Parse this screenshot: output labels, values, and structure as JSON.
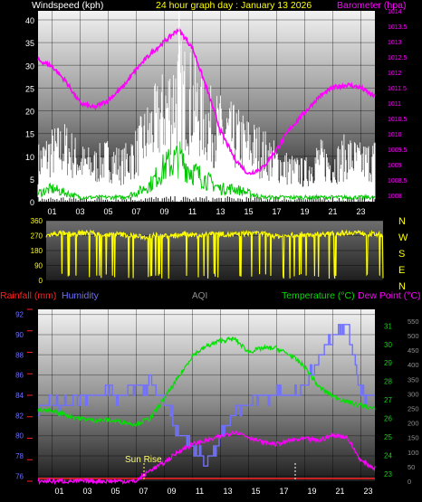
{
  "colors": {
    "background": "#000000",
    "wind_gust": "#ffffff",
    "wind_avg": "#00c800",
    "barometer": "#ff00ff",
    "direction": "#ffff00",
    "rainfall": "#ff2020",
    "humidity": "#7070ff",
    "temperature": "#00e000",
    "dewpoint": "#ff00ff",
    "aqi": "#909090",
    "sunrise": "#ffff66",
    "label_yellow": "#ffff00"
  },
  "top_panel": {
    "left_title": "Windspeed (kph)",
    "center_title": "24 hour graph day : January 13 2026",
    "right_title": "Barometer (hpa)"
  },
  "dir_panel": {
    "compass": [
      "N",
      "W",
      "S",
      "E",
      "N"
    ]
  },
  "bottom_panel": {
    "rain_label": "Rainfall (mm)",
    "humidity_label": "Humidity",
    "aqi_label": "AQI",
    "temp_label": "Temperature (°C)",
    "dew_label": "Dew Point (°C)",
    "sunrise_label": "Sun Rise"
  },
  "chart_data": [
    {
      "type": "line",
      "title": "24 hour graph day : January 13 2026",
      "x_ticks": [
        "01",
        "03",
        "05",
        "07",
        "09",
        "11",
        "13",
        "15",
        "17",
        "19",
        "21",
        "23"
      ],
      "y_left": {
        "label": "Windspeed (kph)",
        "ticks": [
          0,
          5,
          10,
          15,
          20,
          25,
          30,
          35,
          40
        ],
        "range": [
          0,
          42
        ]
      },
      "y_right": {
        "label": "Barometer (hpa)",
        "ticks": [
          1008,
          1008.5,
          1009,
          1009.5,
          1010,
          1010.5,
          1011,
          1011.5,
          1012,
          1012.5,
          1013,
          1013.5,
          1014
        ],
        "range": [
          1007.8,
          1014
        ]
      },
      "series": [
        {
          "name": "Barometer (hpa)",
          "x": [
            0,
            1,
            2,
            3,
            4,
            5,
            6,
            7,
            8,
            9,
            10,
            11,
            12,
            13,
            14,
            15,
            16,
            17,
            18,
            19,
            20,
            21,
            22,
            23,
            24
          ],
          "values": [
            1012.4,
            1012.2,
            1011.7,
            1011.0,
            1010.85,
            1011.1,
            1011.5,
            1012.1,
            1012.6,
            1013.0,
            1013.4,
            1012.8,
            1011.5,
            1010.1,
            1009.2,
            1008.7,
            1008.9,
            1009.5,
            1010.2,
            1010.7,
            1011.2,
            1011.5,
            1011.6,
            1011.5,
            1011.2
          ]
        },
        {
          "name": "Wind gust",
          "x": [
            0,
            1,
            2,
            3,
            4,
            5,
            6,
            7,
            8,
            9,
            10,
            11,
            12,
            13,
            14,
            15,
            16,
            17,
            18,
            19,
            20,
            21,
            22,
            23,
            24
          ],
          "values": [
            11,
            14,
            15,
            11,
            10,
            12,
            10,
            14,
            20,
            25,
            31,
            28,
            22,
            20,
            18,
            16,
            14,
            11,
            9,
            8,
            12,
            10,
            13,
            11,
            12
          ]
        },
        {
          "name": "Wind average",
          "x": [
            0,
            1,
            2,
            3,
            4,
            5,
            6,
            7,
            8,
            9,
            10,
            11,
            12,
            13,
            14,
            15,
            16,
            17,
            18,
            19,
            20,
            21,
            22,
            23,
            24
          ],
          "values": [
            2,
            3,
            2,
            1,
            1,
            1,
            1,
            2,
            4,
            8,
            10,
            7,
            5,
            3,
            3,
            2,
            1,
            1,
            1,
            1,
            1,
            1,
            1,
            1,
            1
          ]
        }
      ]
    },
    {
      "type": "scatter",
      "title": "Wind direction",
      "y_ticks": [
        0,
        90,
        180,
        270,
        360
      ],
      "y_range": [
        0,
        360
      ],
      "series": [
        {
          "name": "Wind direction",
          "x": [
            0,
            1,
            2,
            3,
            4,
            5,
            6,
            7,
            8,
            9,
            10,
            11,
            12,
            13,
            14,
            15,
            16,
            17,
            18,
            19,
            20,
            21,
            22,
            23,
            24
          ],
          "values": [
            270,
            285,
            280,
            290,
            275,
            280,
            270,
            260,
            275,
            265,
            280,
            270,
            285,
            275,
            280,
            290,
            270,
            265,
            280,
            275,
            280,
            285,
            290,
            280,
            275
          ]
        }
      ]
    },
    {
      "type": "line",
      "title": "",
      "x_ticks": [
        "01",
        "03",
        "05",
        "07",
        "09",
        "11",
        "13",
        "15",
        "17",
        "19",
        "21",
        "23"
      ],
      "y_left_humidity": {
        "label": "Humidity",
        "ticks": [
          76,
          78,
          80,
          82,
          84,
          86,
          88,
          90,
          92
        ],
        "range": [
          75.5,
          92.5
        ]
      },
      "y_right_temp": {
        "label": "Temperature (°C)",
        "ticks": [
          23,
          24,
          25,
          26,
          27,
          28,
          29,
          30,
          31
        ],
        "range": [
          22.6,
          31.9
        ]
      },
      "y_right_aqi": {
        "label": "AQI",
        "ticks": [
          0,
          50,
          100,
          150,
          200,
          250,
          300,
          350,
          400,
          450,
          500,
          550
        ],
        "range": [
          0,
          590
        ]
      },
      "series": [
        {
          "name": "Humidity",
          "x": [
            0,
            1,
            2,
            3,
            4,
            5,
            6,
            7,
            8,
            9,
            10,
            11,
            12,
            13,
            14,
            15,
            16,
            17,
            18,
            19,
            20,
            21,
            22,
            23,
            24
          ],
          "values": [
            83,
            83,
            83,
            84,
            84,
            84,
            84,
            85,
            85,
            84,
            80,
            79,
            77,
            80,
            83,
            83,
            84,
            84,
            84,
            85,
            88,
            90,
            91,
            84,
            84
          ]
        },
        {
          "name": "Temperature (°C)",
          "x": [
            0,
            1,
            2,
            3,
            4,
            5,
            6,
            7,
            8,
            9,
            10,
            11,
            12,
            13,
            14,
            15,
            16,
            17,
            18,
            19,
            20,
            21,
            22,
            23,
            24
          ],
          "values": [
            26.4,
            26.4,
            26.2,
            26.0,
            25.9,
            25.9,
            25.8,
            25.7,
            26.0,
            27.1,
            28.2,
            29.4,
            29.9,
            30.2,
            30.3,
            29.6,
            29.8,
            29.8,
            29.4,
            28.8,
            27.7,
            27.2,
            26.9,
            26.7,
            26.5
          ]
        },
        {
          "name": "Dew Point (°C)",
          "x": [
            0,
            1,
            2,
            3,
            4,
            5,
            6,
            7,
            8,
            9,
            10,
            11,
            12,
            13,
            14,
            15,
            16,
            17,
            18,
            19,
            20,
            21,
            22,
            23,
            24
          ],
          "values": [
            22.6,
            22.6,
            22.6,
            22.6,
            22.6,
            22.6,
            22.6,
            22.6,
            23.2,
            23.6,
            24.2,
            24.6,
            24.8,
            25.0,
            25.3,
            25.0,
            24.7,
            24.6,
            24.8,
            24.9,
            24.8,
            25.1,
            25.0,
            23.7,
            23.3
          ]
        },
        {
          "name": "Rainfall (mm)",
          "x": [
            0,
            24
          ],
          "values": [
            0,
            0
          ]
        }
      ],
      "annotations": [
        {
          "text": "Sun Rise",
          "x": 6.6
        }
      ]
    }
  ]
}
